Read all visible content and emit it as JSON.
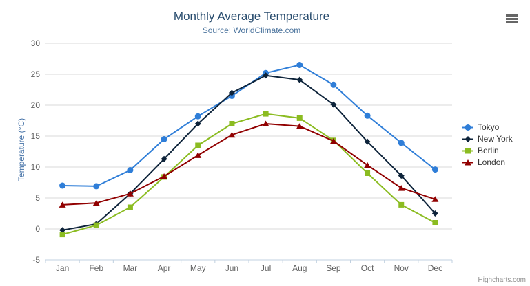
{
  "credits": "Highcharts.com",
  "icons": {
    "context_menu": "hamburger-icon"
  },
  "style_colors": {
    "title": "#274b6d",
    "subtitle": "#4d759e",
    "axis_label": "#606060",
    "y_axis_title": "#4572a7",
    "gridline": "#d8d8d8",
    "axis_line": "#c0d0e0",
    "legend_text": "#333333",
    "credits_text": "#909090"
  },
  "chart_data": {
    "type": "line",
    "title": "Monthly Average Temperature",
    "subtitle": "Source: WorldClimate.com",
    "xlabel": "",
    "ylabel": "Temperature (°C)",
    "ylim": [
      -5,
      30
    ],
    "ytick_step": 5,
    "grid": true,
    "legend_position": "right",
    "categories": [
      "Jan",
      "Feb",
      "Mar",
      "Apr",
      "May",
      "Jun",
      "Jul",
      "Aug",
      "Sep",
      "Oct",
      "Nov",
      "Dec"
    ],
    "series": [
      {
        "name": "Tokyo",
        "color": "#2f7ed8",
        "marker": "circle",
        "values": [
          7.0,
          6.9,
          9.5,
          14.5,
          18.2,
          21.5,
          25.2,
          26.5,
          23.3,
          18.3,
          13.9,
          9.6
        ]
      },
      {
        "name": "New York",
        "color": "#0d233a",
        "marker": "diamond",
        "values": [
          -0.2,
          0.8,
          5.7,
          11.3,
          17.0,
          22.0,
          24.8,
          24.1,
          20.1,
          14.1,
          8.6,
          2.5
        ]
      },
      {
        "name": "Berlin",
        "color": "#8bbc21",
        "marker": "square",
        "values": [
          -0.9,
          0.6,
          3.5,
          8.4,
          13.5,
          17.0,
          18.6,
          17.9,
          14.3,
          9.0,
          3.9,
          1.0
        ]
      },
      {
        "name": "London",
        "color": "#910000",
        "marker": "triangle",
        "values": [
          3.9,
          4.2,
          5.7,
          8.5,
          11.9,
          15.2,
          17.0,
          16.6,
          14.2,
          10.3,
          6.6,
          4.8
        ]
      }
    ]
  }
}
